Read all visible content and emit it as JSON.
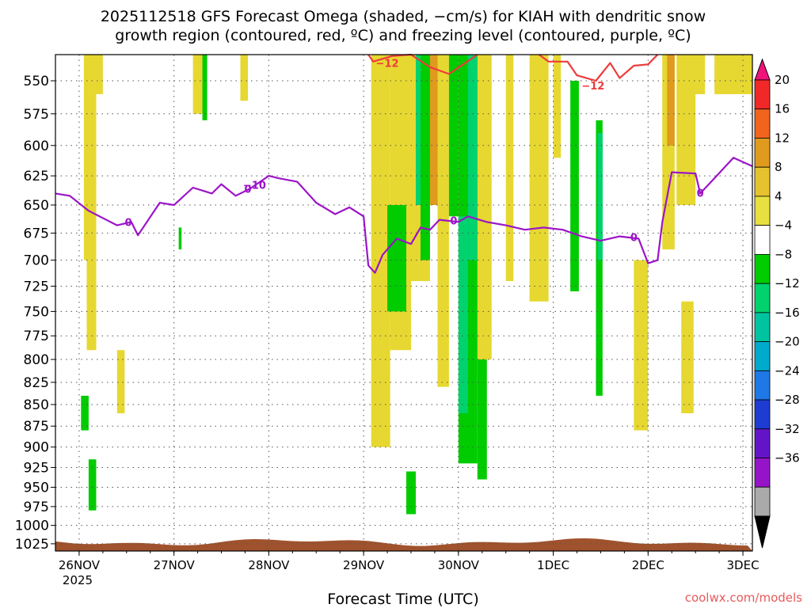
{
  "chart_data": {
    "type": "heatmap",
    "title_line1": "2025112518 GFS Forecast Omega (shaded, −cm/s) for KIAH with dendritic snow",
    "title_line2": "growth region (contoured, red, ºC) and freezing level (contoured, purple, ºC)",
    "xlabel": "Forecast Time (UTC)",
    "credit": "coolwx.com/models",
    "x_ticks": [
      "26NOV",
      "27NOV",
      "28NOV",
      "29NOV",
      "30NOV",
      "1DEC",
      "2DEC",
      "3DEC"
    ],
    "x_year": "2025",
    "x_range_days": [
      -0.25,
      7.1
    ],
    "y_ticks": [
      "550",
      "575",
      "600",
      "625",
      "650",
      "675",
      "700",
      "725",
      "750",
      "775",
      "800",
      "825",
      "850",
      "875",
      "900",
      "925",
      "950",
      "975",
      "1000",
      "1025"
    ],
    "y_range_hpa": [
      531,
      1035
    ],
    "colorbar_ticks": [
      "20",
      "16",
      "12",
      "8",
      "4",
      "−4",
      "−8",
      "−12",
      "−16",
      "−20",
      "−24",
      "−28",
      "−32",
      "−36"
    ],
    "colorbar_colors": [
      "#f02828",
      "#f0641e",
      "#e09a1e",
      "#e6c32e",
      "#e8e040",
      "#ffffff",
      "#00cc00",
      "#00d26e",
      "#00c4a0",
      "#00aacc",
      "#1e78e6",
      "#1e3cd2",
      "#6414c8",
      "#9614c8",
      "#aaaaaa"
    ],
    "colors": {
      "freezing_level": "#9c14c8",
      "dendritic_12": "#ee3b3b",
      "ground": "#a0522d",
      "grid": "#555555"
    },
    "freezing_level_label": "0",
    "freezing_level_labels": [
      {
        "day": 0.52,
        "label": "0"
      },
      {
        "day": 1.78,
        "label": "0"
      },
      {
        "day": 1.85,
        "label": "−10"
      },
      {
        "day": 3.95,
        "label": "0"
      },
      {
        "day": 5.85,
        "label": "0"
      },
      {
        "day": 6.55,
        "label": "0"
      }
    ],
    "freezing_level_series": [
      [
        -0.25,
        640
      ],
      [
        -0.1,
        642
      ],
      [
        0.1,
        655
      ],
      [
        0.4,
        668
      ],
      [
        0.55,
        665
      ],
      [
        0.62,
        677
      ],
      [
        0.85,
        648
      ],
      [
        1.0,
        650
      ],
      [
        1.2,
        635
      ],
      [
        1.4,
        640
      ],
      [
        1.5,
        632
      ],
      [
        1.65,
        642
      ],
      [
        1.8,
        636
      ],
      [
        2.0,
        625
      ],
      [
        2.1,
        627
      ],
      [
        2.3,
        630
      ],
      [
        2.5,
        648
      ],
      [
        2.7,
        658
      ],
      [
        2.85,
        652
      ],
      [
        3.0,
        660
      ],
      [
        3.05,
        705
      ],
      [
        3.12,
        712
      ],
      [
        3.2,
        695
      ],
      [
        3.35,
        680
      ],
      [
        3.5,
        685
      ],
      [
        3.6,
        670
      ],
      [
        3.7,
        672
      ],
      [
        3.8,
        663
      ],
      [
        4.0,
        665
      ],
      [
        4.1,
        660
      ],
      [
        4.3,
        665
      ],
      [
        4.5,
        668
      ],
      [
        4.7,
        672
      ],
      [
        4.9,
        670
      ],
      [
        5.1,
        672
      ],
      [
        5.3,
        678
      ],
      [
        5.5,
        682
      ],
      [
        5.7,
        678
      ],
      [
        5.9,
        680
      ],
      [
        6.0,
        703
      ],
      [
        6.1,
        700
      ],
      [
        6.15,
        665
      ],
      [
        6.25,
        622
      ],
      [
        6.5,
        623
      ],
      [
        6.55,
        640
      ],
      [
        6.7,
        627
      ],
      [
        6.9,
        610
      ],
      [
        7.1,
        617
      ]
    ],
    "dendritic_labels": [
      {
        "day": 3.25,
        "label": "−12"
      },
      {
        "day": 5.42,
        "label": "−12"
      }
    ],
    "dendritic_series": [
      [
        3.05,
        531
      ],
      [
        3.1,
        536
      ],
      [
        3.3,
        532
      ],
      [
        3.5,
        531
      ],
      [
        3.7,
        540
      ],
      [
        3.9,
        545
      ],
      [
        4.05,
        538
      ],
      [
        4.2,
        531
      ]
    ],
    "dendritic_series_2": [
      [
        4.85,
        531
      ],
      [
        4.95,
        536
      ],
      [
        5.15,
        536
      ],
      [
        5.25,
        546
      ],
      [
        5.45,
        550
      ],
      [
        5.6,
        537
      ],
      [
        5.7,
        548
      ],
      [
        5.85,
        539
      ],
      [
        6.0,
        538
      ],
      [
        6.1,
        531
      ]
    ],
    "omega_regions": [
      {
        "day": [
          0.05,
          0.18
        ],
        "p": [
          531,
          700
        ],
        "value": 5
      },
      {
        "day": [
          0.18,
          0.25
        ],
        "p": [
          531,
          560
        ],
        "value": 5
      },
      {
        "day": [
          0.08,
          0.18
        ],
        "p": [
          700,
          790
        ],
        "value": 5
      },
      {
        "day": [
          0.4,
          0.48
        ],
        "p": [
          790,
          860
        ],
        "value": 5
      },
      {
        "day": [
          1.2,
          1.32
        ],
        "p": [
          531,
          575
        ],
        "value": 5
      },
      {
        "day": [
          1.7,
          1.78
        ],
        "p": [
          531,
          565
        ],
        "value": 5
      },
      {
        "day": [
          3.08,
          3.28
        ],
        "p": [
          531,
          900
        ],
        "value": 5
      },
      {
        "day": [
          3.28,
          3.5
        ],
        "p": [
          531,
          790
        ],
        "value": 5
      },
      {
        "day": [
          3.5,
          3.7
        ],
        "p": [
          531,
          720
        ],
        "value": 5
      },
      {
        "day": [
          3.7,
          3.78
        ],
        "p": [
          531,
          650
        ],
        "value": 8
      },
      {
        "day": [
          3.78,
          3.9
        ],
        "p": [
          531,
          830
        ],
        "value": 5
      },
      {
        "day": [
          4.2,
          4.35
        ],
        "p": [
          531,
          800
        ],
        "value": 5
      },
      {
        "day": [
          4.5,
          4.58
        ],
        "p": [
          531,
          720
        ],
        "value": 5
      },
      {
        "day": [
          4.75,
          4.95
        ],
        "p": [
          531,
          740
        ],
        "value": 5
      },
      {
        "day": [
          5.0,
          5.08
        ],
        "p": [
          531,
          610
        ],
        "value": 5
      },
      {
        "day": [
          5.85,
          6.0
        ],
        "p": [
          700,
          880
        ],
        "value": 5
      },
      {
        "day": [
          6.15,
          6.28
        ],
        "p": [
          531,
          690
        ],
        "value": 5
      },
      {
        "day": [
          6.2,
          6.28
        ],
        "p": [
          531,
          600
        ],
        "value": 8
      },
      {
        "day": [
          6.3,
          6.5
        ],
        "p": [
          531,
          650
        ],
        "value": 5
      },
      {
        "day": [
          6.35,
          6.48
        ],
        "p": [
          740,
          860
        ],
        "value": 5
      },
      {
        "day": [
          6.48,
          6.6
        ],
        "p": [
          531,
          560
        ],
        "value": 5
      },
      {
        "day": [
          6.7,
          7.0
        ],
        "p": [
          531,
          560
        ],
        "value": 5
      },
      {
        "day": [
          7.0,
          7.1
        ],
        "p": [
          531,
          560
        ],
        "value": 5
      },
      {
        "day": [
          0.02,
          0.1
        ],
        "p": [
          840,
          880
        ],
        "value": -6
      },
      {
        "day": [
          0.1,
          0.18
        ],
        "p": [
          915,
          980
        ],
        "value": -6
      },
      {
        "day": [
          1.05,
          1.08
        ],
        "p": [
          670,
          690
        ],
        "value": -6
      },
      {
        "day": [
          1.3,
          1.35
        ],
        "p": [
          531,
          580
        ],
        "value": -6
      },
      {
        "day": [
          3.25,
          3.45
        ],
        "p": [
          650,
          750
        ],
        "value": -6
      },
      {
        "day": [
          3.55,
          3.65
        ],
        "p": [
          531,
          650
        ],
        "value": -10
      },
      {
        "day": [
          3.6,
          3.7
        ],
        "p": [
          531,
          700
        ],
        "value": -6
      },
      {
        "day": [
          3.45,
          3.55
        ],
        "p": [
          930,
          985
        ],
        "value": -6
      },
      {
        "day": [
          3.9,
          4.0
        ],
        "p": [
          531,
          660
        ],
        "value": -6
      },
      {
        "day": [
          4.0,
          4.2
        ],
        "p": [
          531,
          920
        ],
        "value": -6
      },
      {
        "day": [
          4.1,
          4.2
        ],
        "p": [
          531,
          700
        ],
        "value": -10
      },
      {
        "day": [
          4.2,
          4.3
        ],
        "p": [
          800,
          940
        ],
        "value": -6
      },
      {
        "day": [
          4.0,
          4.1
        ],
        "p": [
          660,
          860
        ],
        "value": -10
      },
      {
        "day": [
          5.18,
          5.27
        ],
        "p": [
          550,
          730
        ],
        "value": -6
      },
      {
        "day": [
          5.45,
          5.52
        ],
        "p": [
          580,
          840
        ],
        "value": -6
      },
      {
        "day": [
          5.47,
          5.52
        ],
        "p": [
          590,
          700
        ],
        "value": -10
      }
    ],
    "ground": {
      "p_top": 1025
    }
  }
}
